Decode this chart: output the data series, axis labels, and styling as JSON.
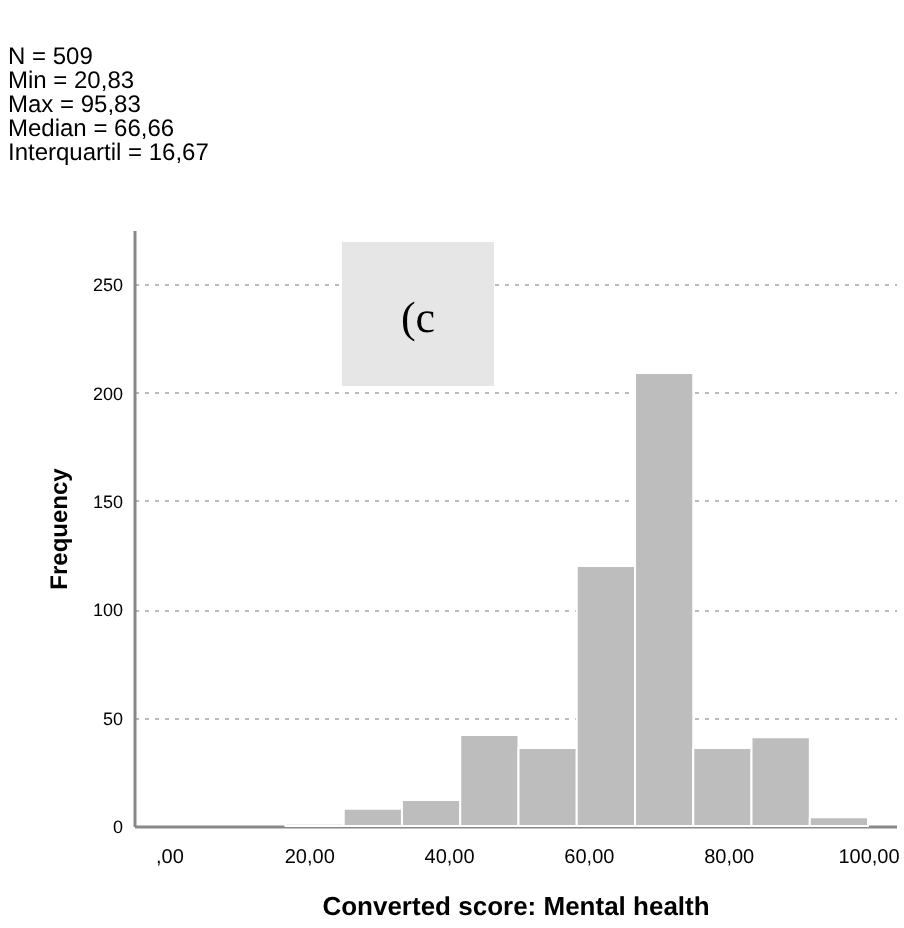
{
  "chart_data": {
    "type": "histogram",
    "xlabel": "Converted score: Mental health",
    "ylabel": "Frequency",
    "annotations": [
      "N = 509",
      "Min = 20,83",
      "Max = 95,83",
      "Median = 66,66",
      "Interquartil = 16,67",
      {
        "text": "(c"
      }
    ],
    "bins": [
      16.67,
      25,
      33.33,
      41.67,
      50,
      58.33,
      66.67,
      75,
      83.33,
      91.67,
      100
    ],
    "values": [
      1,
      8,
      12,
      42,
      36,
      120,
      209,
      36,
      41,
      4
    ],
    "color": "#bdbdbd",
    "xlim": [
      -5,
      104
    ],
    "xticks": [
      {
        "value": 0,
        "label": ",00"
      },
      {
        "value": 20,
        "label": "20,00"
      },
      {
        "value": 40,
        "label": "40,00"
      },
      {
        "value": 60,
        "label": "60,00"
      },
      {
        "value": 80,
        "label": "80,00"
      },
      {
        "value": 100,
        "label": "100,00"
      }
    ],
    "ylim": [
      0,
      275
    ],
    "yticks": [
      0,
      50,
      100,
      150,
      200,
      250
    ],
    "grid": "y"
  }
}
